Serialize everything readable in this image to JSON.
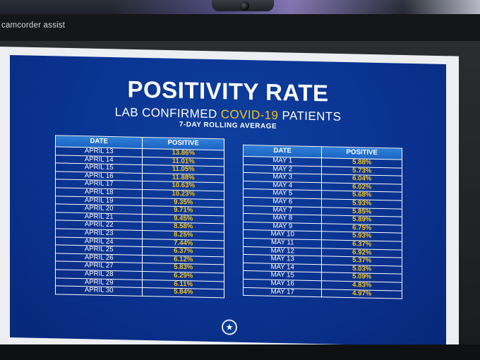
{
  "window": {
    "title": "camcorder assist"
  },
  "slide": {
    "title": "POSITIVITY RATE",
    "subtitle_prefix": "LAB CONFIRMED ",
    "subtitle_accent": "COVID-19",
    "subtitle_suffix": " PATIENTS",
    "subtitle2": "7-DAY ROLLING AVERAGE",
    "accent_color": "#f6c21c",
    "seal_icon": "texas-seal-icon",
    "april_table": {
      "headers": [
        "DATE",
        "POSITIVE"
      ],
      "rows": [
        [
          "APRIL 13",
          "13.86%"
        ],
        [
          "APRIL 14",
          "11.01%"
        ],
        [
          "APRIL 15",
          "11.05%"
        ],
        [
          "APRIL 16",
          "11.88%"
        ],
        [
          "APRIL 17",
          "10.63%"
        ],
        [
          "APRIL 18",
          "10.23%"
        ],
        [
          "APRIL 19",
          "9.35%"
        ],
        [
          "APRIL 20",
          "9.71%"
        ],
        [
          "APRIL 21",
          "9.45%"
        ],
        [
          "APRIL 22",
          "8.58%"
        ],
        [
          "APRIL 23",
          "8.25%"
        ],
        [
          "APRIL 24",
          "7.44%"
        ],
        [
          "APRIL 25",
          "6.37%"
        ],
        [
          "APRIL 26",
          "6.12%"
        ],
        [
          "APRIL 27",
          "5.83%"
        ],
        [
          "APRIL 28",
          "6.29%"
        ],
        [
          "APRIL 29",
          "6.11%"
        ],
        [
          "APRIL 30",
          "5.84%"
        ]
      ]
    },
    "may_table": {
      "headers": [
        "DATE",
        "POSITIVE"
      ],
      "rows": [
        [
          "MAY 1",
          "5.88%"
        ],
        [
          "MAY 2",
          "5.73%"
        ],
        [
          "MAY 3",
          "6.04%"
        ],
        [
          "MAY 4",
          "6.02%"
        ],
        [
          "MAY 5",
          "5.68%"
        ],
        [
          "MAY 6",
          "5.93%"
        ],
        [
          "MAY 7",
          "5.85%"
        ],
        [
          "MAY 8",
          "5.89%"
        ],
        [
          "MAY 9",
          "6.75%"
        ],
        [
          "MAY 10",
          "5.93%"
        ],
        [
          "MAY 11",
          "6.37%"
        ],
        [
          "MAY 12",
          "6.92%"
        ],
        [
          "MAY 13",
          "5.37%"
        ],
        [
          "MAY 14",
          "5.03%"
        ],
        [
          "MAY 15",
          "5.09%"
        ],
        [
          "MAY 16",
          "4.83%"
        ],
        [
          "MAY 17",
          "4.97%"
        ]
      ]
    }
  }
}
